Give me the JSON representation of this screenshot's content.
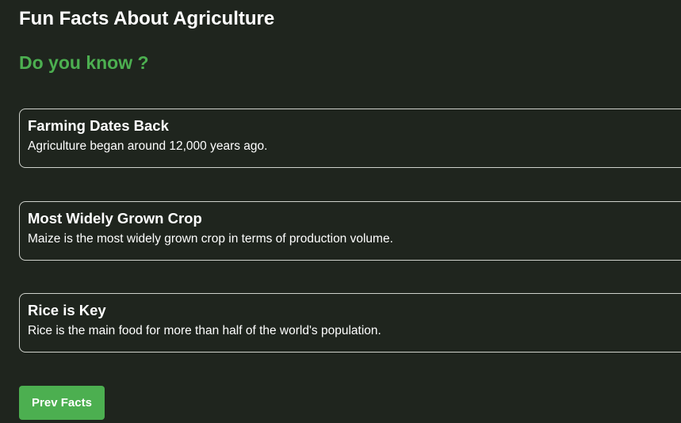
{
  "page": {
    "title": "Fun Facts About Agriculture",
    "subtitle": "Do you know ?"
  },
  "facts": [
    {
      "title": "Farming Dates Back",
      "text": "Agriculture began around 12,000 years ago."
    },
    {
      "title": "Most Widely Grown Crop",
      "text": "Maize is the most widely grown crop in terms of production volume."
    },
    {
      "title": "Rice is Key",
      "text": "Rice is the main food for more than half of the world's population."
    }
  ],
  "buttons": {
    "prev_label": "Prev Facts"
  },
  "colors": {
    "background": "#1f251e",
    "accent": "#4caf50",
    "card_border": "#cfd2cc"
  }
}
